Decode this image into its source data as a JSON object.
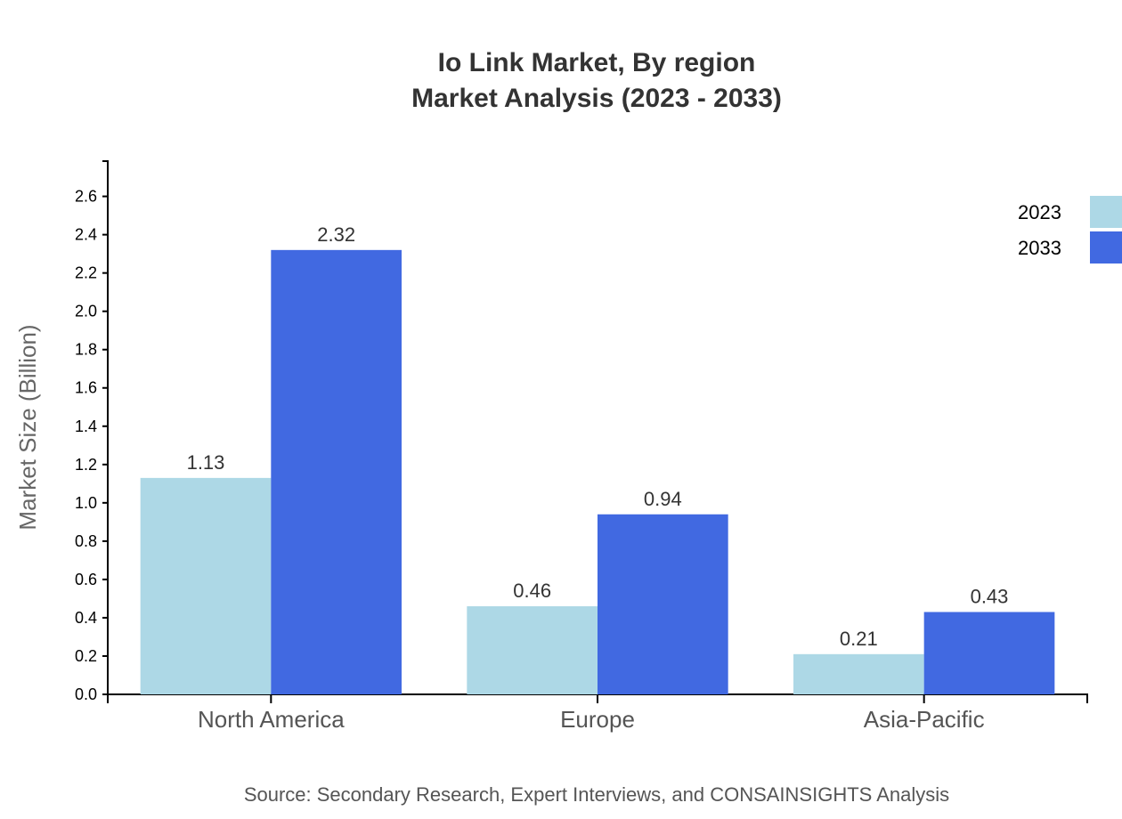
{
  "chart_data": {
    "type": "bar",
    "title": "Io Link Market, By region",
    "subtitle": "Market Analysis (2023 - 2033)",
    "xlabel": "",
    "ylabel": "Market Size (Billion)",
    "ylim": [
      0,
      2.784
    ],
    "yticks": [
      "0.0",
      "0.2",
      "0.4",
      "0.6",
      "0.8",
      "1.0",
      "1.2",
      "1.4",
      "1.6",
      "1.8",
      "2.0",
      "2.2",
      "2.4",
      "2.6"
    ],
    "categories": [
      "North America",
      "Europe",
      "Asia-Pacific"
    ],
    "series": [
      {
        "name": "2023",
        "values": [
          1.13,
          0.46,
          0.21
        ],
        "labels": [
          "1.13",
          "0.46",
          "0.21"
        ],
        "color": "#add8e6"
      },
      {
        "name": "2033",
        "values": [
          2.32,
          0.94,
          0.43
        ],
        "labels": [
          "2.32",
          "0.94",
          "0.43"
        ],
        "color": "#4169e1"
      }
    ],
    "legend": "top-right",
    "grid": false,
    "source": "Source: Secondary Research, Expert Interviews, and CONSAINSIGHTS Analysis"
  }
}
